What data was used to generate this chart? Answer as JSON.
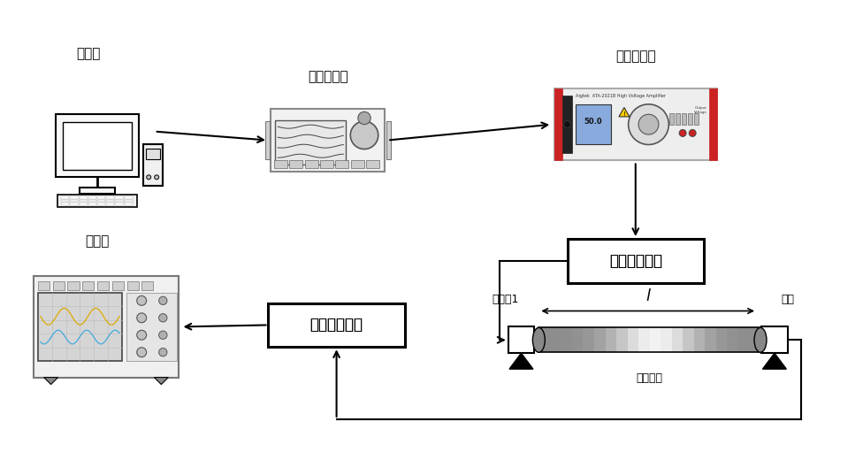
{
  "bg_color": "#ffffff",
  "components": {
    "computer": {
      "label": "上位机"
    },
    "signal_gen": {
      "label": "信号发生器"
    },
    "power_amp": {
      "label": "功率放大器"
    },
    "impedance": {
      "label": "阻抗匹配电路"
    },
    "low_pass": {
      "label": "低通滤波电路"
    },
    "oscilloscope": {
      "label": "示波器"
    },
    "transducer1": {
      "label": "换能刨1"
    },
    "transducer2": {
      "label": "换能"
    },
    "electrode_label": {
      "label": "石墨电极"
    },
    "l_label": {
      "label": "l"
    }
  },
  "line_color": "#000000",
  "text_color": "#000000"
}
